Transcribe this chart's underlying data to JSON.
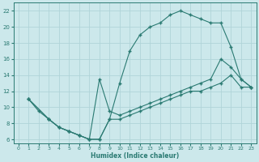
{
  "xlabel": "Humidex (Indice chaleur)",
  "bg_color": "#cce8eb",
  "grid_color": "#b0d4d8",
  "line_color": "#2a7a72",
  "xlim": [
    -0.5,
    23.5
  ],
  "ylim": [
    5.5,
    23
  ],
  "xticks": [
    0,
    1,
    2,
    3,
    4,
    5,
    6,
    7,
    8,
    9,
    10,
    11,
    12,
    13,
    14,
    15,
    16,
    17,
    18,
    19,
    20,
    21,
    22,
    23
  ],
  "yticks": [
    6,
    8,
    10,
    12,
    14,
    16,
    18,
    20,
    22
  ],
  "curve1_x": [
    1,
    2,
    3,
    4,
    5,
    6,
    7,
    8,
    9,
    10,
    11,
    12,
    13,
    14,
    15,
    16,
    17,
    18,
    19,
    20,
    21,
    22,
    23
  ],
  "curve1_y": [
    11,
    9.5,
    8.5,
    7.5,
    7.0,
    6.5,
    6.0,
    6.0,
    8.5,
    13.0,
    17.0,
    19.0,
    20.0,
    20.5,
    21.5,
    22.0,
    21.5,
    21.0,
    20.5,
    20.5,
    17.5,
    13.5,
    12.5
  ],
  "curve2_x": [
    1,
    3,
    4,
    5,
    6,
    7,
    8,
    9,
    10,
    11,
    12,
    13,
    14,
    15,
    16,
    17,
    18,
    19,
    20,
    21,
    22,
    23
  ],
  "curve2_y": [
    11,
    8.5,
    7.5,
    7.0,
    6.5,
    6.0,
    13.5,
    9.5,
    9.0,
    9.5,
    10.0,
    10.5,
    11.0,
    11.5,
    12.0,
    12.5,
    13.0,
    13.5,
    16.0,
    15.0,
    13.5,
    12.5
  ],
  "curve3_x": [
    1,
    3,
    4,
    5,
    6,
    7,
    8,
    9,
    10,
    11,
    12,
    13,
    14,
    15,
    16,
    17,
    18,
    19,
    20,
    21,
    22,
    23
  ],
  "curve3_y": [
    11,
    8.5,
    7.5,
    7.0,
    6.5,
    6.0,
    6.0,
    8.5,
    8.5,
    9.0,
    9.5,
    10.0,
    10.5,
    11.0,
    11.5,
    12.0,
    12.0,
    12.5,
    13.0,
    14.0,
    12.5,
    12.5
  ]
}
